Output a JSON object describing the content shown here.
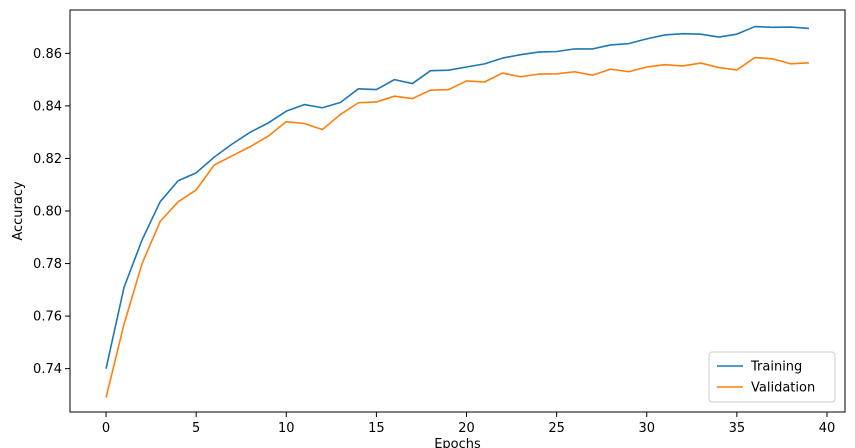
{
  "chart_data": {
    "type": "line",
    "title": "",
    "xlabel": "Epochs",
    "ylabel": "Accuracy",
    "xlim": [
      -2,
      41
    ],
    "ylim": [
      0.7235,
      0.8765
    ],
    "xticks": [
      0,
      5,
      10,
      15,
      20,
      25,
      30,
      35,
      40
    ],
    "yticks": [
      0.74,
      0.76,
      0.78,
      0.8,
      0.82,
      0.84,
      0.86
    ],
    "ytick_labels": [
      "0.74",
      "0.76",
      "0.78",
      "0.80",
      "0.82",
      "0.84",
      "0.86"
    ],
    "grid": false,
    "legend": "lower-right",
    "x": [
      0,
      1,
      2,
      3,
      4,
      5,
      6,
      7,
      8,
      9,
      10,
      11,
      12,
      13,
      14,
      15,
      16,
      17,
      18,
      19,
      20,
      21,
      22,
      23,
      24,
      25,
      26,
      27,
      28,
      29,
      30,
      31,
      32,
      33,
      34,
      35,
      36,
      37,
      38,
      39
    ],
    "series": [
      {
        "name": "Training",
        "color": "#1f77b4",
        "values": [
          0.74,
          0.771,
          0.789,
          0.8035,
          0.8115,
          0.8145,
          0.8205,
          0.8255,
          0.83,
          0.8335,
          0.838,
          0.8405,
          0.8393,
          0.8413,
          0.8465,
          0.8462,
          0.85,
          0.8485,
          0.8534,
          0.8536,
          0.8548,
          0.856,
          0.8582,
          0.8595,
          0.8605,
          0.8607,
          0.8617,
          0.8617,
          0.8632,
          0.8637,
          0.8655,
          0.867,
          0.8675,
          0.8673,
          0.8662,
          0.8673,
          0.8702,
          0.8699,
          0.87,
          0.8695
        ]
      },
      {
        "name": "Validation",
        "color": "#ff7f0e",
        "values": [
          0.729,
          0.757,
          0.78,
          0.796,
          0.8035,
          0.808,
          0.8175,
          0.821,
          0.8245,
          0.8285,
          0.834,
          0.8333,
          0.831,
          0.8367,
          0.8412,
          0.8415,
          0.8437,
          0.8428,
          0.846,
          0.8462,
          0.8495,
          0.8491,
          0.8525,
          0.8511,
          0.8521,
          0.8522,
          0.853,
          0.8517,
          0.854,
          0.853,
          0.8548,
          0.8557,
          0.8552,
          0.8563,
          0.8546,
          0.8537,
          0.8584,
          0.8579,
          0.856,
          0.8564
        ]
      }
    ]
  }
}
